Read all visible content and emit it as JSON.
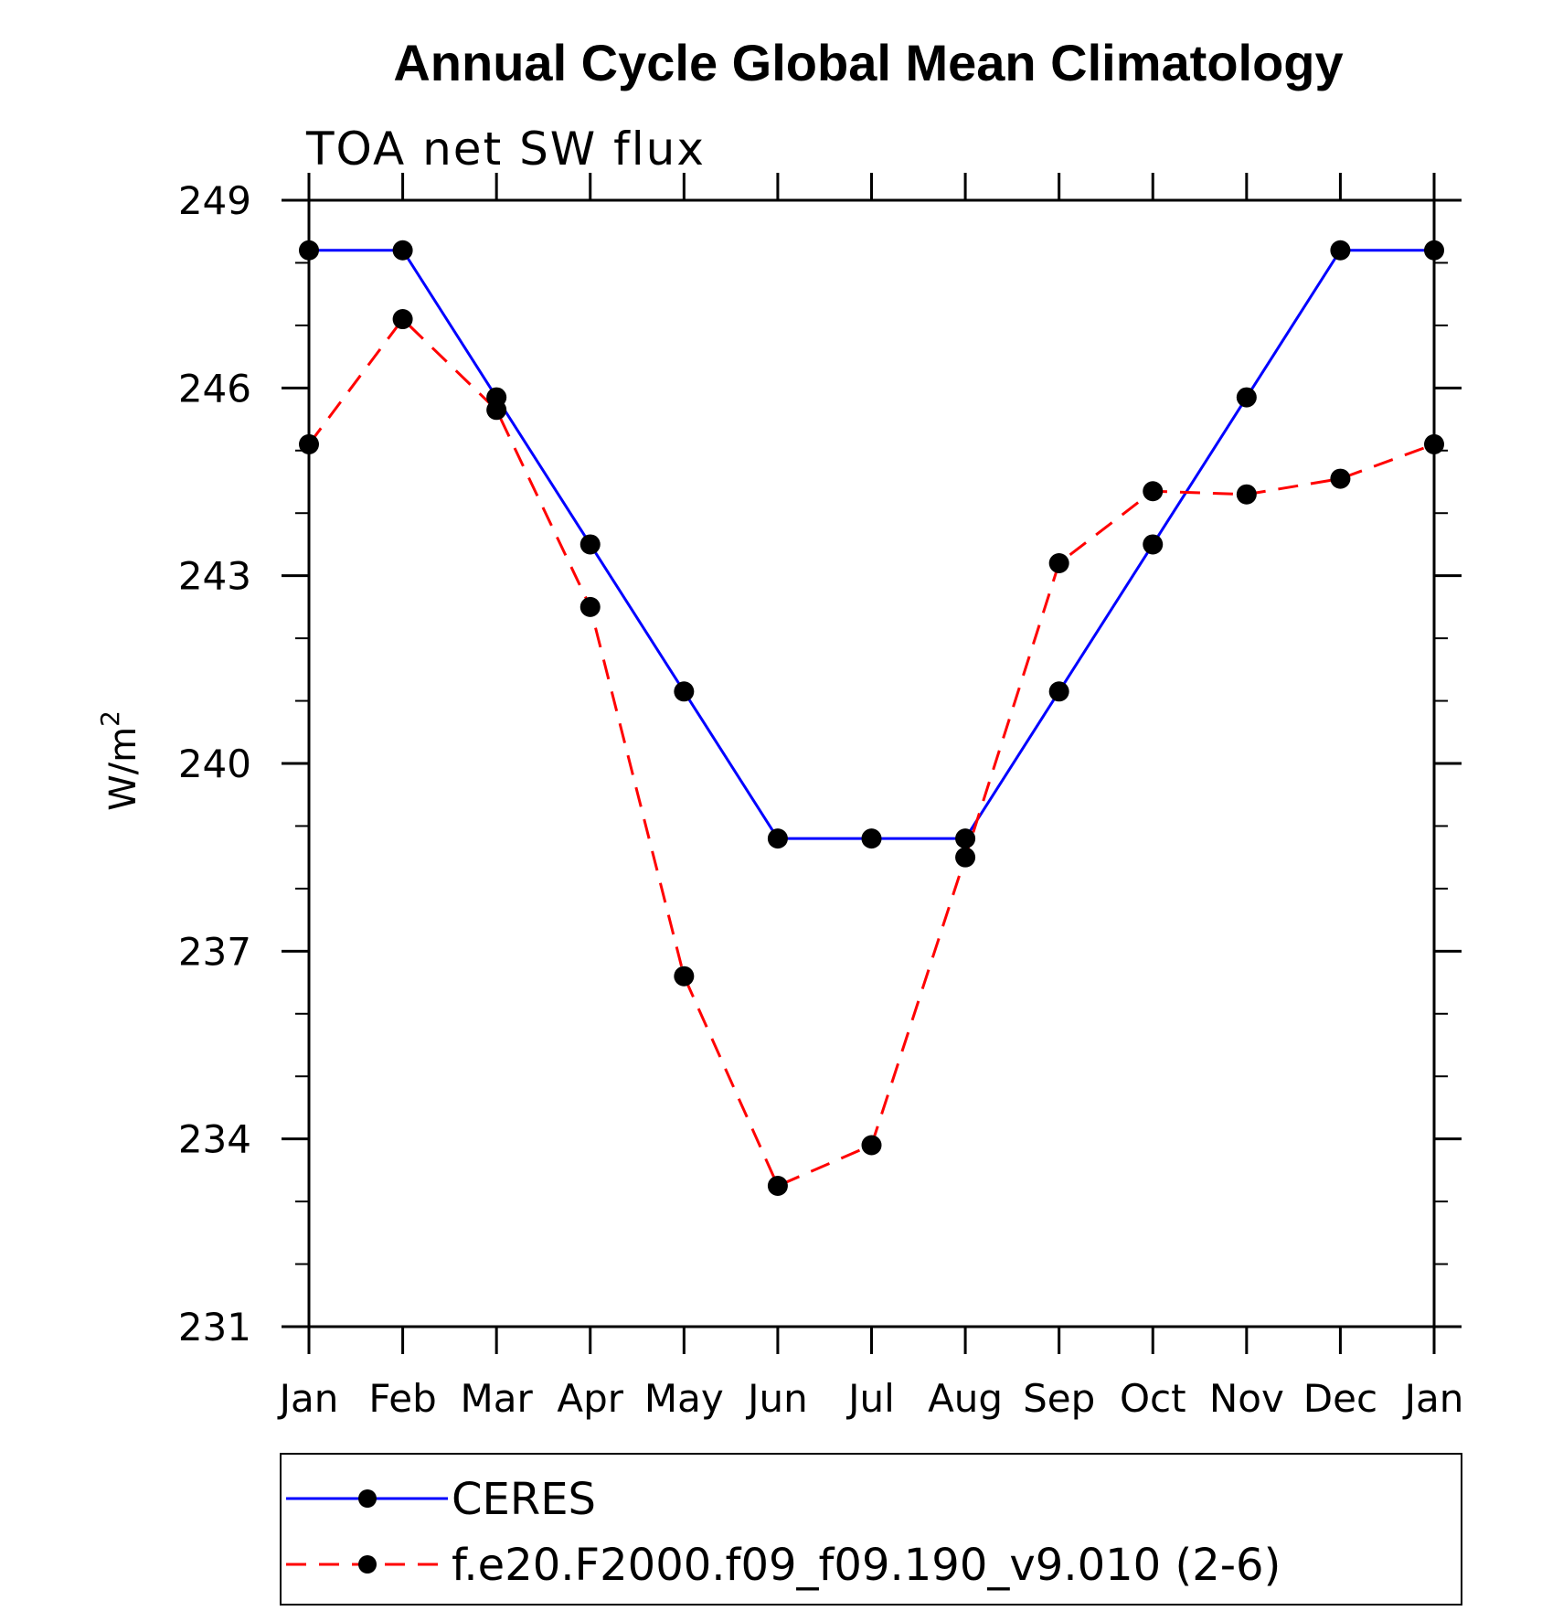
{
  "chart_data": {
    "type": "line",
    "title": "Annual Cycle Global Mean Climatology",
    "subtitle": "TOA net SW flux",
    "ylabel": "W/m",
    "ylabel_superscript": "2",
    "categories": [
      "Jan",
      "Feb",
      "Mar",
      "Apr",
      "May",
      "Jun",
      "Jul",
      "Aug",
      "Sep",
      "Oct",
      "Nov",
      "Dec",
      "Jan"
    ],
    "ylim": [
      231,
      249
    ],
    "yticks": [
      "231",
      "234",
      "237",
      "240",
      "243",
      "246",
      "249"
    ],
    "series": [
      {
        "name": "CERES",
        "color": "#0000ff",
        "dash": "solid",
        "values": [
          248.2,
          248.2,
          245.85,
          243.5,
          241.15,
          238.8,
          238.8,
          238.8,
          241.15,
          243.5,
          245.85,
          248.2,
          248.2
        ]
      },
      {
        "name": "f.e20.F2000.f09_f09.190_v9.010 (2-6)",
        "color": "#ff0000",
        "dash": "dashed",
        "values": [
          245.1,
          247.1,
          245.65,
          242.5,
          236.6,
          233.25,
          233.9,
          238.5,
          243.2,
          244.35,
          244.3,
          244.55,
          245.1
        ]
      }
    ]
  }
}
